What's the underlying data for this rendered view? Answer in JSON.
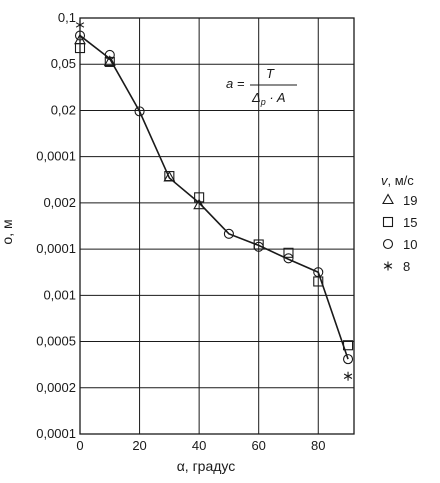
{
  "chart_data": {
    "type": "line",
    "xlabel": "α, градус",
    "ylabel": "о, м",
    "x_ticks": [
      "0",
      "20",
      "40",
      "60",
      "80"
    ],
    "x_values": [
      0,
      20,
      40,
      60,
      80
    ],
    "xlim": [
      0,
      92
    ],
    "y_tick_labels": [
      "0,1",
      "0,05",
      "0,02",
      "0,0001",
      "0,002",
      "0,0001",
      "0,001",
      "0,0005",
      "0,0002",
      "0,0001"
    ],
    "y_tick_levels": 10,
    "grid": true,
    "formula": {
      "lhs": "a =",
      "numerator": "T",
      "denominator_main": "Δ",
      "denominator_sub": "p",
      "denominator_rest": " · A"
    },
    "legend": {
      "title_var": "v",
      "title_unit": ", м/с",
      "position": "right",
      "entries": [
        {
          "label": "19",
          "marker": "triangle"
        },
        {
          "label": "15",
          "marker": "square"
        },
        {
          "label": "10",
          "marker": "circle"
        },
        {
          "label": "8",
          "marker": "asterisk"
        }
      ]
    },
    "line": {
      "x": [
        0,
        10,
        20,
        30,
        40,
        50,
        60,
        70,
        80,
        90
      ],
      "y_level": [
        8.62,
        8.12,
        6.98,
        5.54,
        5.0,
        4.33,
        4.08,
        3.78,
        3.5,
        1.62
      ]
    },
    "series": [
      {
        "name": "19",
        "marker": "triangle",
        "x": [
          0,
          10,
          30,
          40
        ],
        "y_level": [
          8.52,
          8.05,
          5.55,
          4.95
        ]
      },
      {
        "name": "15",
        "marker": "square",
        "x": [
          0,
          10,
          30,
          40,
          60,
          70,
          80,
          90
        ],
        "y_level": [
          8.35,
          8.05,
          5.58,
          5.12,
          4.1,
          3.92,
          3.3,
          1.92
        ]
      },
      {
        "name": "10",
        "marker": "circle",
        "x": [
          0,
          10,
          20,
          50,
          60,
          70,
          80,
          90
        ],
        "y_level": [
          8.62,
          8.2,
          6.98,
          4.33,
          4.05,
          3.8,
          3.5,
          1.62
        ]
      },
      {
        "name": "8",
        "marker": "asterisk",
        "x": [
          0,
          90
        ],
        "y_level": [
          8.85,
          1.25
        ]
      }
    ]
  }
}
